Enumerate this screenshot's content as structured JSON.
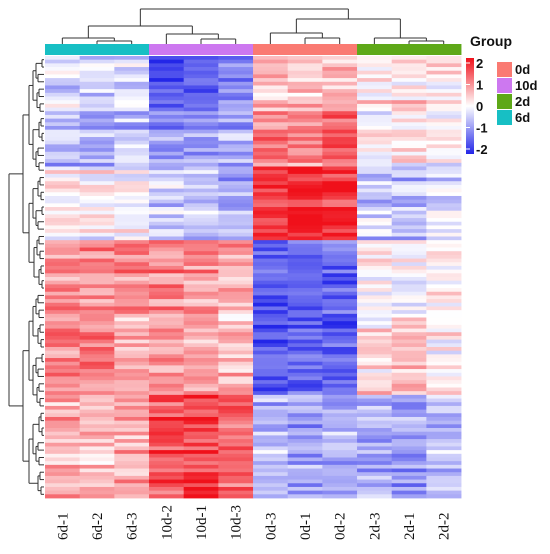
{
  "chart_data": {
    "type": "heatmap",
    "columns": [
      "6d-1",
      "6d-2",
      "6d-3",
      "10d-2",
      "10d-1",
      "10d-3",
      "0d-3",
      "0d-1",
      "0d-2",
      "2d-3",
      "2d-1",
      "2d-2"
    ],
    "column_groups": [
      "6d",
      "6d",
      "6d",
      "10d",
      "10d",
      "10d",
      "0d",
      "0d",
      "0d",
      "2d",
      "2d",
      "2d"
    ],
    "row_count": 120,
    "row_blocks": [
      {
        "rows": 15,
        "values": [
          -0.3,
          -0.4,
          -0.3,
          -1.6,
          -1.4,
          -1.1,
          0.6,
          0.5,
          0.6,
          0.2,
          0.3,
          0.2
        ]
      },
      {
        "rows": 15,
        "values": [
          -0.7,
          -0.8,
          -0.6,
          -0.9,
          -1.0,
          -0.8,
          1.1,
          1.0,
          1.2,
          0.0,
          0.1,
          -0.2
        ]
      },
      {
        "rows": 20,
        "values": [
          0.1,
          0.0,
          -0.1,
          -0.5,
          -0.6,
          -0.7,
          1.6,
          1.9,
          1.6,
          -0.5,
          -0.6,
          -0.4
        ]
      },
      {
        "rows": 20,
        "values": [
          0.9,
          0.9,
          1.0,
          1.0,
          0.9,
          0.7,
          -1.5,
          -1.5,
          -1.4,
          0.1,
          0.0,
          0.2
        ]
      },
      {
        "rows": 22,
        "values": [
          1.0,
          1.1,
          0.7,
          0.8,
          0.7,
          0.6,
          -1.6,
          -1.4,
          -1.5,
          0.3,
          0.5,
          0.1
        ]
      },
      {
        "rows": 28,
        "values": [
          0.7,
          0.6,
          0.7,
          1.4,
          1.6,
          1.3,
          -0.6,
          -0.8,
          -0.7,
          -0.7,
          -0.9,
          -0.6
        ]
      }
    ],
    "color_scale": {
      "min": -2,
      "max": 2,
      "low": "#2326e8",
      "mid": "#ffffff",
      "high": "#f0101a",
      "ticks": [
        "2",
        "1",
        "0",
        "-1",
        "-2"
      ]
    },
    "legend": {
      "title": "Group",
      "items": [
        {
          "label": "0d",
          "color": "#fa7a72"
        },
        {
          "label": "10d",
          "color": "#cd78f0"
        },
        {
          "label": "2d",
          "color": "#5ea818"
        },
        {
          "label": "6d",
          "color": "#17bfc4"
        }
      ]
    },
    "group_colors": {
      "0d": "#fa7a72",
      "10d": "#cd78f0",
      "2d": "#5ea818",
      "6d": "#17bfc4"
    },
    "grid": false,
    "legend_position": "right"
  }
}
